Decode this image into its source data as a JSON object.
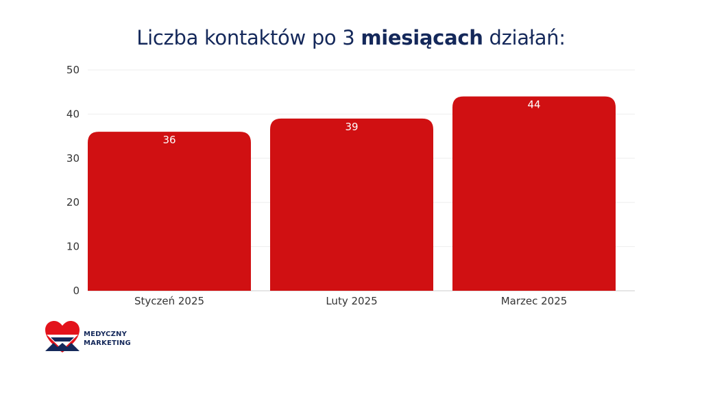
{
  "title": {
    "prefix": "Liczba kontaktów po 3 ",
    "bold": "miesiącach",
    "suffix": " działań:"
  },
  "chart_data": {
    "type": "bar",
    "categories": [
      "Styczeń 2025",
      "Luty 2025",
      "Marzec 2025"
    ],
    "values": [
      36,
      39,
      44
    ],
    "ylim": [
      0,
      50
    ],
    "yticks": [
      0,
      10,
      20,
      30,
      40,
      50
    ],
    "grid": true,
    "bar_color": "#d01012"
  },
  "logo": {
    "line1": "MEDYCZNY",
    "line2": "MARKETING",
    "colors": {
      "red": "#e3131b",
      "navy": "#14285a"
    }
  }
}
